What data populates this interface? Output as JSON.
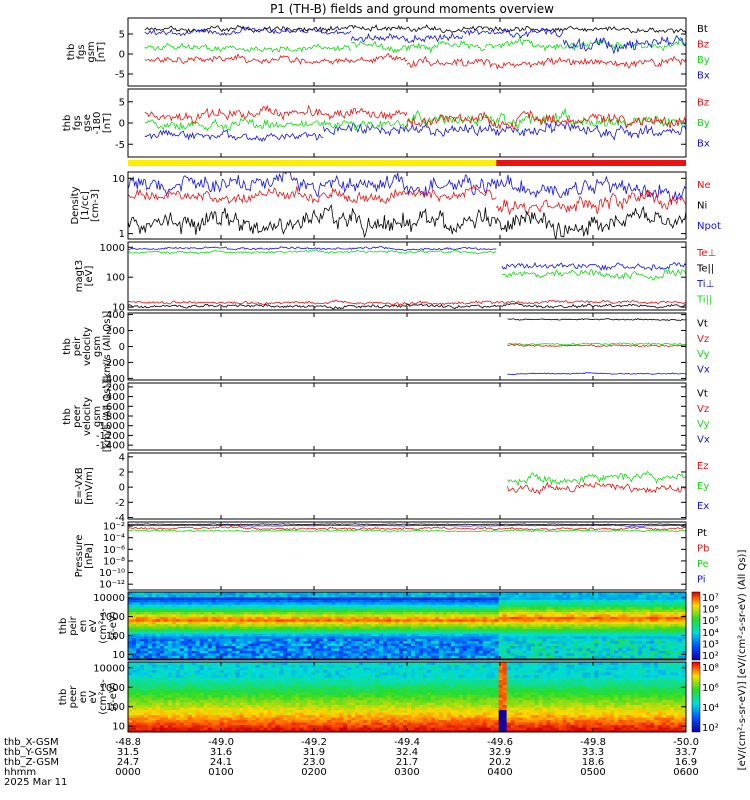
{
  "title": "P1 (TH-B) fields and ground moments overview",
  "colors": {
    "black": "#000000",
    "red": "#ee1111",
    "green": "#11dd11",
    "blue": "#1111ee",
    "yellow": "#ffee00"
  },
  "panels": [
    {
      "id": "fgs_gsm",
      "ylabel": [
        "thb",
        "fgs",
        "gsm",
        "[nT]"
      ],
      "ylim": [
        -8,
        9
      ],
      "ticks": [
        "-5",
        "0",
        "5"
      ],
      "tickvals": [
        -5,
        0,
        5
      ],
      "scale": "linear",
      "legend": [
        {
          "label": "Bt",
          "color": "black"
        },
        {
          "label": "Bz",
          "color": "red"
        },
        {
          "label": "By",
          "color": "green"
        },
        {
          "label": "Bx",
          "color": "blue"
        }
      ],
      "series": [
        {
          "name": "Bt",
          "color": "black",
          "seg": [
            [
              0.03,
              1.0,
              6.2,
              1.0,
              20
            ]
          ]
        },
        {
          "name": "By",
          "color": "green",
          "seg": [
            [
              0.03,
              0.4,
              1.5,
              1.2,
              21
            ],
            [
              0.4,
              0.64,
              1.8,
              1.5,
              22
            ],
            [
              0.64,
              1.0,
              2.2,
              1.6,
              23
            ]
          ]
        },
        {
          "name": "Bz",
          "color": "red",
          "seg": [
            [
              0.03,
              0.5,
              -1.5,
              1.2,
              24
            ],
            [
              0.5,
              1.0,
              -2.0,
              1.6,
              25
            ]
          ]
        },
        {
          "name": "Bx",
          "color": "blue",
          "seg": [
            [
              0.03,
              0.4,
              5.5,
              1.0,
              26
            ],
            [
              0.4,
              0.6,
              4.0,
              1.5,
              27
            ],
            [
              0.6,
              0.78,
              5.5,
              1.5,
              28
            ],
            [
              0.78,
              1.0,
              2.5,
              2.5,
              29
            ]
          ]
        }
      ]
    },
    {
      "id": "fgs_gse",
      "ylabel": [
        "thb",
        "fgs",
        "gse",
        "-180",
        "[nT]"
      ],
      "ylim": [
        -8,
        8
      ],
      "ticks": [
        "-5",
        "0",
        "5"
      ],
      "tickvals": [
        -5,
        0,
        5
      ],
      "scale": "linear",
      "legend": [
        {
          "label": "Bz",
          "color": "red"
        },
        {
          "label": "By",
          "color": "green"
        },
        {
          "label": "Bx",
          "color": "blue"
        }
      ],
      "series": [
        {
          "name": "Bx",
          "color": "blue",
          "seg": [
            [
              0.03,
              0.35,
              -3.0,
              1.5,
              30
            ],
            [
              0.35,
              0.7,
              -1.5,
              1.8,
              31
            ],
            [
              0.7,
              1.0,
              -2.0,
              2.2,
              32
            ]
          ]
        },
        {
          "name": "By",
          "color": "green",
          "seg": [
            [
              0.03,
              0.5,
              -0.5,
              1.6,
              33
            ],
            [
              0.5,
              1.0,
              0.5,
              2.0,
              34
            ]
          ]
        },
        {
          "name": "Bz",
          "color": "red",
          "seg": [
            [
              0.03,
              0.5,
              2.0,
              1.8,
              35
            ],
            [
              0.5,
              1.0,
              0.5,
              2.0,
              36
            ]
          ]
        }
      ]
    },
    {
      "id": "density",
      "ylabel": [
        "Density",
        "[1/cc]",
        "[cm-3]"
      ],
      "ylim": [
        0.8,
        13
      ],
      "ticks": [
        "1",
        "10"
      ],
      "tickvals": [
        1,
        10
      ],
      "scale": "log",
      "legend": [
        {
          "label": "Ne",
          "color": "red"
        },
        {
          "label": "Ni",
          "color": "black"
        },
        {
          "label": "Npot",
          "color": "blue"
        }
      ],
      "series": [
        {
          "name": "Npot",
          "color": "blue",
          "seg": [
            [
              0.0,
              1.0,
              7.5,
              0.12,
              37
            ]
          ]
        },
        {
          "name": "Ne",
          "color": "red",
          "seg": [
            [
              0.0,
              0.66,
              5.0,
              0.08,
              38
            ],
            [
              0.66,
              1.0,
              3.5,
              0.12,
              39
            ]
          ]
        },
        {
          "name": "Ni",
          "color": "black",
          "seg": [
            [
              0.0,
              1.0,
              1.6,
              0.15,
              40
            ]
          ]
        }
      ]
    },
    {
      "id": "magt3",
      "ylabel": [
        "magt3",
        "[eV]"
      ],
      "ylim": [
        8,
        1500
      ],
      "ticks": [
        "10",
        "100",
        "1000"
      ],
      "tickvals": [
        10,
        100,
        1000
      ],
      "scale": "log",
      "legend": [
        {
          "label": "Te⊥",
          "color": "red"
        },
        {
          "label": "Te||",
          "color": "black"
        },
        {
          "label": "Ti⊥",
          "color": "blue"
        },
        {
          "label": "Ti||",
          "color": "green"
        }
      ],
      "series": [
        {
          "name": "Ti⊥",
          "color": "blue",
          "seg": [
            [
              0.0,
              0.66,
              900,
              0.03,
              41
            ],
            [
              0.67,
              1.0,
              230,
              0.08,
              42
            ]
          ]
        },
        {
          "name": "Ti||",
          "color": "green",
          "seg": [
            [
              0.0,
              0.66,
              700,
              0.03,
              43
            ],
            [
              0.67,
              1.0,
              120,
              0.1,
              44
            ]
          ]
        },
        {
          "name": "Te⊥",
          "color": "red",
          "seg": [
            [
              0.0,
              1.0,
              14,
              0.04,
              45
            ]
          ]
        },
        {
          "name": "Te||",
          "color": "black",
          "seg": [
            [
              0.0,
              1.0,
              11,
              0.04,
              46
            ]
          ]
        }
      ]
    },
    {
      "id": "peir_vel",
      "ylabel": [
        "thb",
        "peir",
        "velocity",
        "gsm",
        "[km/s (All Qs)]"
      ],
      "ylim": [
        -420,
        420
      ],
      "ticks": [
        "-400",
        "-200",
        "0",
        "200",
        "400"
      ],
      "tickvals": [
        -400,
        -200,
        0,
        200,
        400
      ],
      "scale": "linear",
      "legend": [
        {
          "label": "Vt",
          "color": "black"
        },
        {
          "label": "Vz",
          "color": "red"
        },
        {
          "label": "Vy",
          "color": "green"
        },
        {
          "label": "Vx",
          "color": "blue"
        }
      ],
      "series": [
        {
          "name": "Vt",
          "color": "black",
          "seg": [
            [
              0.68,
              1.0,
              340,
              12,
              47
            ]
          ]
        },
        {
          "name": "Vy",
          "color": "green",
          "seg": [
            [
              0.68,
              1.0,
              30,
              18,
              48
            ]
          ]
        },
        {
          "name": "Vz",
          "color": "red",
          "seg": [
            [
              0.68,
              1.0,
              10,
              18,
              49
            ]
          ]
        },
        {
          "name": "Vx",
          "color": "blue",
          "seg": [
            [
              0.68,
              1.0,
              -340,
              12,
              50
            ]
          ]
        }
      ]
    },
    {
      "id": "peer_vel",
      "ylabel": [
        "thb",
        "peer",
        "velocity",
        "gsm",
        "[km/s (All Qs)]"
      ],
      "ylim": [
        -1500,
        -120
      ],
      "ticks": [
        "-1400",
        "-1200",
        "-1000",
        "-800",
        "-600",
        "-400",
        "-200"
      ],
      "tickvals": [
        -1400,
        -1200,
        -1000,
        -800,
        -600,
        -400,
        -200
      ],
      "scale": "linear",
      "legend": [
        {
          "label": "Vt",
          "color": "black"
        },
        {
          "label": "Vz",
          "color": "red"
        },
        {
          "label": "Vy",
          "color": "green"
        },
        {
          "label": "Vx",
          "color": "blue"
        }
      ],
      "series": []
    },
    {
      "id": "exb",
      "ylabel": [
        "E=-VxB",
        "[mV/m]"
      ],
      "ylim": [
        -4.2,
        4.5
      ],
      "ticks": [
        "-4",
        "-2",
        "0",
        "2",
        "4"
      ],
      "tickvals": [
        -4,
        -2,
        0,
        2,
        4
      ],
      "scale": "linear",
      "legend": [
        {
          "label": "Ez",
          "color": "red"
        },
        {
          "label": "Ey",
          "color": "green"
        },
        {
          "label": "Ex",
          "color": "blue"
        }
      ],
      "series": [
        {
          "name": "Ey",
          "color": "green",
          "seg": [
            [
              0.68,
              1.0,
              1.2,
              0.8,
              51
            ]
          ]
        },
        {
          "name": "Ez",
          "color": "red",
          "seg": [
            [
              0.68,
              1.0,
              0.0,
              0.7,
              52
            ]
          ]
        }
      ]
    },
    {
      "id": "pressure",
      "ylabel": [
        "Pressure",
        "[nPa]"
      ],
      "ylim": [
        1e-13,
        0.05
      ],
      "ticks": [
        "10⁻¹²",
        "10⁻¹⁰",
        "10⁻⁸",
        "10⁻⁶",
        "10⁻⁴",
        "10⁻²"
      ],
      "tickvals": [
        1e-12,
        1e-10,
        1e-08,
        1e-06,
        0.0001,
        0.01
      ],
      "scale": "log",
      "legend": [
        {
          "label": "Pt",
          "color": "black"
        },
        {
          "label": "Pb",
          "color": "red"
        },
        {
          "label": "Pe",
          "color": "green"
        },
        {
          "label": "Pi",
          "color": "blue"
        }
      ],
      "series": [
        {
          "name": "Pt",
          "color": "black",
          "seg": [
            [
              0.0,
              1.0,
              0.02,
              0.05,
              53
            ]
          ]
        },
        {
          "name": "Pi",
          "color": "blue",
          "seg": [
            [
              0.0,
              1.0,
              0.012,
              0.05,
              54
            ]
          ]
        },
        {
          "name": "Pb",
          "color": "red",
          "seg": [
            [
              0.0,
              1.0,
              0.004,
              0.15,
              55
            ]
          ]
        },
        {
          "name": "Pe",
          "color": "green",
          "seg": [
            [
              0.0,
              1.0,
              0.0015,
              0.1,
              56
            ]
          ]
        }
      ]
    },
    {
      "id": "peir_eflux",
      "ylabel": [
        "thb",
        "peir",
        "en",
        "eV",
        "(cm²-s-",
        "sr-eV)"
      ],
      "ylim": [
        5,
        20000
      ],
      "ticks": [
        "10",
        "100",
        "1000",
        "10000"
      ],
      "tickvals": [
        10,
        100,
        1000,
        10000
      ],
      "scale": "log",
      "spectrogram": "ion"
    },
    {
      "id": "peer_eflux",
      "ylabel": [
        "thb",
        "peer",
        "en",
        "eV",
        "(cm²-s-",
        "sr-eV)"
      ],
      "ylim": [
        5,
        20000
      ],
      "ticks": [
        "10",
        "100",
        "1000",
        "10000"
      ],
      "tickvals": [
        10,
        100,
        1000,
        10000
      ],
      "scale": "log",
      "spectrogram": "electron"
    }
  ],
  "colorbars": [
    {
      "ticks": [
        "10⁷",
        "10⁶",
        "10⁵",
        "10⁴",
        "10³",
        "10²"
      ]
    },
    {
      "ticks": [
        "10⁸",
        "10⁶",
        "10⁴",
        "10²"
      ]
    }
  ],
  "colorbar_label": "[eV/(cm²-s-sr-eV)] [eV/(cm²-s-sr-eV) (All Qs)]",
  "xaxis": {
    "rows": [
      {
        "label": "thb_X-GSM",
        "values": [
          "-48.8",
          "-49.0",
          "-49.2",
          "-49.4",
          "-49.6",
          "-49.8",
          "-50.0"
        ]
      },
      {
        "label": "thb_Y-GSM",
        "values": [
          "31.5",
          "31.6",
          "31.9",
          "32.4",
          "32.9",
          "33.3",
          "33.7"
        ]
      },
      {
        "label": "thb_Z-GSM",
        "values": [
          "24.7",
          "24.1",
          "23.0",
          "21.7",
          "20.2",
          "18.6",
          "16.9"
        ]
      },
      {
        "label": "hhmm",
        "values": [
          "0000",
          "0100",
          "0200",
          "0300",
          "0400",
          "0500",
          "0600"
        ]
      }
    ],
    "date": "2025 Mar 11"
  },
  "mode_bar": [
    {
      "from": 0.0,
      "to": 0.66,
      "color": "yellow"
    },
    {
      "from": 0.66,
      "to": 1.0,
      "color": "red"
    }
  ]
}
